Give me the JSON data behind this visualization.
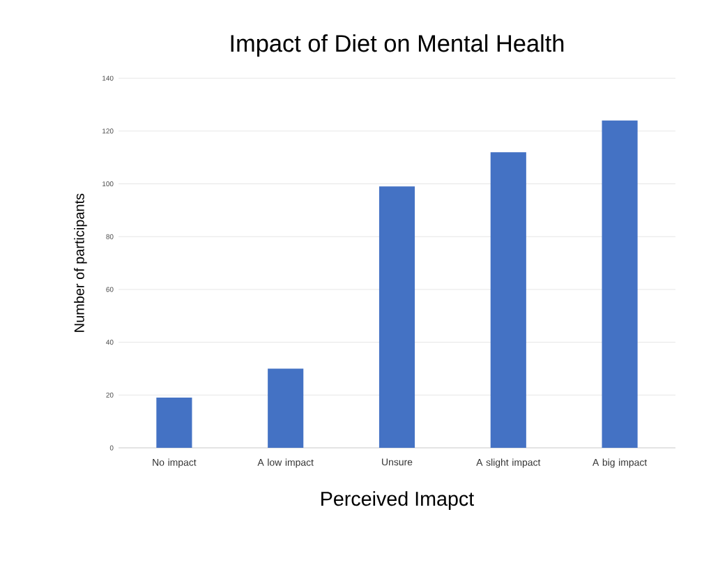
{
  "chart_data": {
    "type": "bar",
    "title": "Impact of Diet on Mental Health",
    "xlabel": "Perceived Imapct",
    "ylabel": "Number of participants",
    "categories": [
      "No impact",
      "A low impact",
      "Unsure",
      "A slight impact",
      "A big impact"
    ],
    "values": [
      19,
      30,
      99,
      112,
      124
    ],
    "color": "#4472c4",
    "ylim": [
      0,
      140
    ],
    "yticks": [
      0,
      20,
      40,
      60,
      80,
      100,
      120,
      140
    ],
    "grid": "y"
  }
}
